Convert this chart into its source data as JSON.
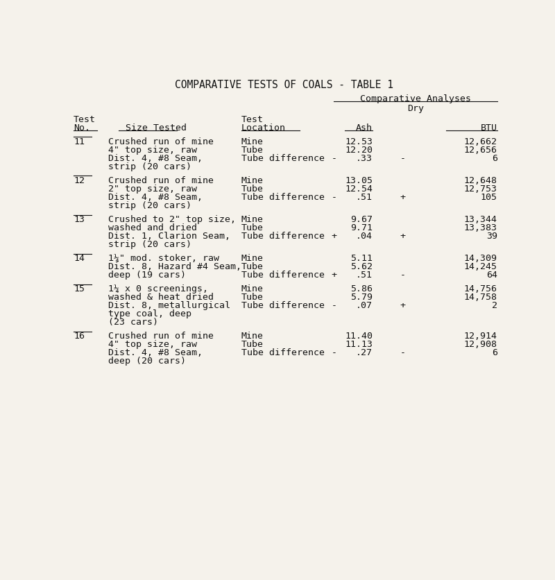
{
  "title": "COMPARATIVE TESTS OF COALS - TABLE 1",
  "bg_color": "#f5f2eb",
  "text_color": "#111111",
  "font_family": "monospace",
  "font_size": 9.5,
  "rows": [
    {
      "test_no": "11",
      "size_lines": [
        "Crushed run of mine",
        "4\" top size, raw",
        "Dist. 4, #8 Seam,",
        "strip (20 cars)"
      ],
      "entries": [
        {
          "location": "Mine",
          "ash_sign": "",
          "ash": "12.53",
          "btu_sign": "",
          "btu": "12,662"
        },
        {
          "location": "Tube",
          "ash_sign": "",
          "ash": "12.20",
          "btu_sign": "",
          "btu": "12,656"
        },
        {
          "location": "Tube difference",
          "ash_sign": "-",
          "ash": ".33",
          "btu_sign": "-",
          "btu": "6"
        }
      ]
    },
    {
      "test_no": "12",
      "size_lines": [
        "Crushed run of mine",
        "2\" top size, raw",
        "Dist. 4, #8 Seam,",
        "strip (20 cars)"
      ],
      "entries": [
        {
          "location": "Mine",
          "ash_sign": "",
          "ash": "13.05",
          "btu_sign": "",
          "btu": "12,648"
        },
        {
          "location": "Tube",
          "ash_sign": "",
          "ash": "12.54",
          "btu_sign": "",
          "btu": "12,753"
        },
        {
          "location": "Tube difference",
          "ash_sign": "-",
          "ash": ".51",
          "btu_sign": "+",
          "btu": "105"
        }
      ]
    },
    {
      "test_no": "13",
      "size_lines": [
        "Crushed to 2\" top size,",
        "washed and dried",
        "Dist. 1, Clarion Seam,",
        "strip (20 cars)"
      ],
      "entries": [
        {
          "location": "Mine",
          "ash_sign": "",
          "ash": "9.67",
          "btu_sign": "",
          "btu": "13,344"
        },
        {
          "location": "Tube",
          "ash_sign": "",
          "ash": "9.71",
          "btu_sign": "",
          "btu": "13,383"
        },
        {
          "location": "Tube difference",
          "ash_sign": "+",
          "ash": ".04",
          "btu_sign": "+",
          "btu": "39"
        }
      ]
    },
    {
      "test_no": "14",
      "size_lines": [
        "1¼\" mod. stoker, raw",
        "Dist. 8, Hazard #4 Seam,",
        "deep (19 cars)"
      ],
      "entries": [
        {
          "location": "Mine",
          "ash_sign": "",
          "ash": "5.11",
          "btu_sign": "",
          "btu": "14,309"
        },
        {
          "location": "Tube",
          "ash_sign": "",
          "ash": "5.62",
          "btu_sign": "",
          "btu": "14,245"
        },
        {
          "location": "Tube difference",
          "ash_sign": "+",
          "ash": ".51",
          "btu_sign": "-",
          "btu": "64"
        }
      ]
    },
    {
      "test_no": "15",
      "size_lines": [
        "1¼ x 0 screenings,",
        "washed & heat dried",
        "Dist. 8, metallurgical",
        "type coal, deep",
        "(23 cars)"
      ],
      "entries": [
        {
          "location": "Mine",
          "ash_sign": "",
          "ash": "5.86",
          "btu_sign": "",
          "btu": "14,756"
        },
        {
          "location": "Tube",
          "ash_sign": "",
          "ash": "5.79",
          "btu_sign": "",
          "btu": "14,758"
        },
        {
          "location": "Tube difference",
          "ash_sign": "-",
          "ash": ".07",
          "btu_sign": "+",
          "btu": "2"
        }
      ]
    },
    {
      "test_no": "16",
      "size_lines": [
        "Crushed run of mine",
        "4\" top size, raw",
        "Dist. 4, #8 Seam,",
        "deep (20 cars)"
      ],
      "entries": [
        {
          "location": "Mine",
          "ash_sign": "",
          "ash": "11.40",
          "btu_sign": "",
          "btu": "12,914"
        },
        {
          "location": "Tube",
          "ash_sign": "",
          "ash": "11.13",
          "btu_sign": "",
          "btu": "12,908"
        },
        {
          "location": "Tube difference",
          "ash_sign": "-",
          "ash": ".27",
          "btu_sign": "-",
          "btu": "6"
        }
      ]
    }
  ]
}
